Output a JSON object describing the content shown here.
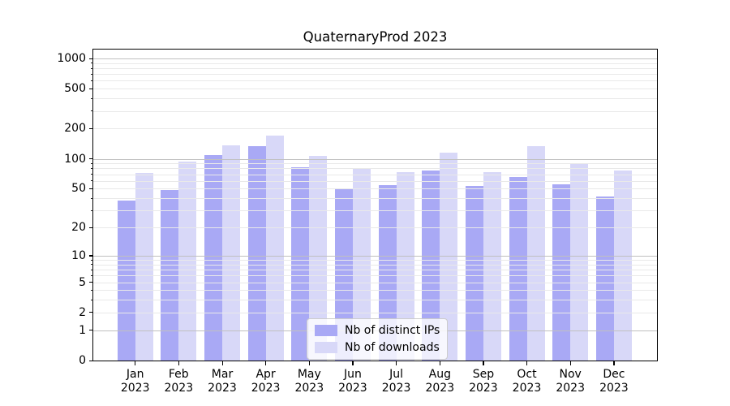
{
  "title": "QuaternaryProd 2023",
  "legend": {
    "position": "lower center",
    "items": [
      {
        "key": "ips",
        "label": "Nb of distinct IPs",
        "color": "#a9a9f5"
      },
      {
        "key": "downloads",
        "label": "Nb of downloads",
        "color": "#d8d8f8"
      }
    ]
  },
  "colors": {
    "series_ips": "#a9a9f5",
    "series_downloads": "#d8d8f8",
    "grid_major": "#c0c0c0",
    "grid_minor": "#e9e9e9",
    "axis": "#000000",
    "legend_border": "#cccccc",
    "text": "#000000"
  },
  "x_axis": {
    "year_label": "2023",
    "months": [
      "Jan",
      "Feb",
      "Mar",
      "Apr",
      "May",
      "Jun",
      "Jul",
      "Aug",
      "Sep",
      "Oct",
      "Nov",
      "Dec"
    ]
  },
  "y_axis": {
    "tick_labels": [
      "0",
      "1",
      "2",
      "5",
      "10",
      "20",
      "50",
      "100",
      "200",
      "500",
      "1000"
    ]
  },
  "chart_data": {
    "type": "bar",
    "title": "QuaternaryProd 2023",
    "categories": [
      "Jan 2023",
      "Feb 2023",
      "Mar 2023",
      "Apr 2023",
      "May 2023",
      "Jun 2023",
      "Jul 2023",
      "Aug 2023",
      "Sep 2023",
      "Oct 2023",
      "Nov 2023",
      "Dec 2023"
    ],
    "series": [
      {
        "name": "Nb of distinct IPs",
        "values": [
          38,
          48,
          108,
          135,
          82,
          50,
          54,
          76,
          53,
          65,
          55,
          42
        ]
      },
      {
        "name": "Nb of downloads",
        "values": [
          72,
          93,
          137,
          172,
          106,
          81,
          73,
          116,
          73,
          135,
          88,
          76
        ]
      }
    ],
    "yscale": "log1p",
    "ylim": [
      0,
      1226
    ],
    "yticks": [
      0,
      1,
      2,
      5,
      10,
      20,
      50,
      100,
      200,
      500,
      1000
    ],
    "major_gridlines": [
      1,
      10,
      100,
      1000
    ],
    "minor_gridlines": [
      2,
      3,
      4,
      5,
      6,
      7,
      8,
      9,
      20,
      30,
      40,
      50,
      60,
      70,
      80,
      90,
      200,
      300,
      400,
      500,
      600,
      700,
      800,
      900
    ],
    "grid": true,
    "legend_position": "lower center"
  }
}
